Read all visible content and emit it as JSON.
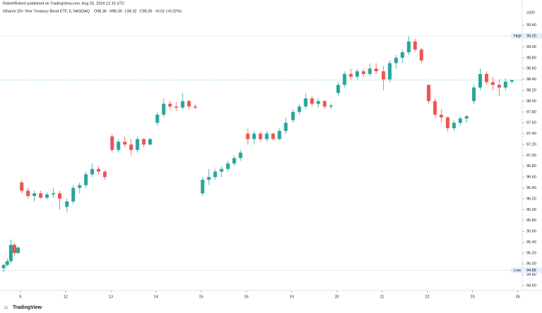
{
  "chart_data": {
    "type": "candlestick",
    "publisher": "RobertRobert published on TradingView.com, Aug 25, 2024 12:15 UTC",
    "title": "iShares 20+ Year Treasury Bond ETF, 5, NASDAQ",
    "legend_values": [
      "O98.36",
      "H98.39",
      "L98.32",
      "C98.39",
      "+0.02 (+0.02%)"
    ],
    "currency": "USD",
    "brand": "TradingView",
    "up_color": "#26a69a",
    "down_color": "#ef5350",
    "high_label": "High",
    "high": {
      "value": 99.2,
      "label": "99.20"
    },
    "low_label": "Low",
    "low": 94.88,
    "xlim": [
      -0.45,
      11.1
    ],
    "xticks": [
      {
        "value": 0,
        "label": "9"
      },
      {
        "value": 1,
        "label": "12"
      },
      {
        "value": 2,
        "label": "13"
      },
      {
        "value": 3,
        "label": "14"
      },
      {
        "value": 4,
        "label": "15"
      },
      {
        "value": 5,
        "label": "16"
      },
      {
        "value": 6,
        "label": "19"
      },
      {
        "value": 7,
        "label": "20"
      },
      {
        "value": 8,
        "label": "21"
      },
      {
        "value": 9,
        "label": "22"
      },
      {
        "value": 10,
        "label": "23"
      },
      {
        "value": 11,
        "label": "26"
      }
    ],
    "ylim": [
      94.51,
      99.76
    ],
    "yticks": [
      {
        "value": 94.6,
        "label": "94.60"
      },
      {
        "value": 94.8,
        "label": "94.80"
      },
      {
        "value": 95,
        "label": "95.00"
      },
      {
        "value": 95.2,
        "label": "95.20"
      },
      {
        "value": 95.4,
        "label": "95.40"
      },
      {
        "value": 95.6,
        "label": "95.60"
      },
      {
        "value": 95.8,
        "label": "95.80"
      },
      {
        "value": 96,
        "label": "96.00"
      },
      {
        "value": 96.2,
        "label": "96.20"
      },
      {
        "value": 96.4,
        "label": "96.40"
      },
      {
        "value": 96.6,
        "label": "96.60"
      },
      {
        "value": 96.8,
        "label": "96.80"
      },
      {
        "value": 97,
        "label": "97.00"
      },
      {
        "value": 97.2,
        "label": "97.20"
      },
      {
        "value": 97.4,
        "label": "97.40"
      },
      {
        "value": 97.6,
        "label": "97.60"
      },
      {
        "value": 97.8,
        "label": "97.80"
      },
      {
        "value": 98,
        "label": "98.00"
      },
      {
        "value": 98.2,
        "label": "98.20"
      },
      {
        "value": 98.4,
        "label": "98.40"
      },
      {
        "value": 98.6,
        "label": "98.60"
      },
      {
        "value": 98.8,
        "label": "98.80"
      },
      {
        "value": 99,
        "label": "99.00"
      },
      {
        "value": 99.2,
        "label": "99.20"
      },
      {
        "value": 99.4,
        "label": "99.40"
      }
    ],
    "x": [
      -0.37,
      -0.29,
      -0.21,
      -0.13,
      -0.05,
      0.03,
      0.17,
      0.31,
      0.45,
      0.59,
      0.73,
      0.87,
      1.03,
      1.17,
      1.31,
      1.45,
      1.59,
      1.73,
      1.87,
      2.03,
      2.17,
      2.31,
      2.45,
      2.59,
      2.73,
      2.87,
      3.03,
      3.17,
      3.31,
      3.45,
      3.59,
      3.73,
      3.87,
      4.03,
      4.17,
      4.31,
      4.45,
      4.59,
      4.73,
      4.87,
      5.03,
      5.17,
      5.31,
      5.45,
      5.59,
      5.73,
      5.87,
      6.03,
      6.17,
      6.31,
      6.45,
      6.59,
      6.73,
      6.87,
      7.03,
      7.17,
      7.31,
      7.45,
      7.59,
      7.73,
      7.87,
      8.03,
      8.17,
      8.31,
      8.45,
      8.59,
      8.73,
      8.87,
      9.03,
      9.17,
      9.31,
      9.45,
      9.59,
      9.73,
      9.87,
      10.03,
      10.17,
      10.31,
      10.45,
      10.59,
      10.73,
      10.87
    ],
    "ohlc": [
      [
        94.92,
        95.0,
        94.85,
        94.98
      ],
      [
        94.98,
        95.1,
        94.95,
        95.05
      ],
      [
        95.05,
        95.45,
        95.0,
        95.35
      ],
      [
        95.35,
        95.38,
        95.15,
        95.2
      ],
      [
        95.2,
        95.32,
        95.18,
        95.3
      ],
      [
        96.5,
        96.55,
        96.3,
        96.35
      ],
      [
        96.35,
        96.4,
        96.2,
        96.25
      ],
      [
        96.25,
        96.35,
        96.15,
        96.3
      ],
      [
        96.3,
        96.35,
        96.2,
        96.22
      ],
      [
        96.22,
        96.32,
        96.18,
        96.28
      ],
      [
        96.28,
        96.4,
        96.22,
        96.3
      ],
      [
        96.3,
        96.35,
        96.0,
        96.2
      ],
      [
        96.05,
        96.2,
        95.95,
        96.15
      ],
      [
        96.15,
        96.45,
        96.1,
        96.4
      ],
      [
        96.4,
        96.5,
        96.3,
        96.45
      ],
      [
        96.45,
        96.7,
        96.4,
        96.65
      ],
      [
        96.65,
        96.85,
        96.6,
        96.75
      ],
      [
        96.75,
        96.8,
        96.65,
        96.7
      ],
      [
        96.7,
        96.72,
        96.55,
        96.6
      ],
      [
        97.35,
        97.4,
        97.05,
        97.1
      ],
      [
        97.1,
        97.3,
        97.05,
        97.25
      ],
      [
        97.25,
        97.35,
        97.15,
        97.2
      ],
      [
        97.2,
        97.3,
        97.0,
        97.1
      ],
      [
        97.1,
        97.35,
        97.05,
        97.3
      ],
      [
        97.3,
        97.32,
        97.15,
        97.2
      ],
      [
        97.2,
        97.32,
        97.18,
        97.3
      ],
      [
        97.6,
        97.8,
        97.55,
        97.75
      ],
      [
        97.75,
        98.05,
        97.7,
        97.95
      ],
      [
        97.95,
        98.0,
        97.85,
        97.9
      ],
      [
        97.9,
        97.98,
        97.82,
        97.88
      ],
      [
        97.88,
        98.15,
        97.85,
        98.0
      ],
      [
        98.0,
        98.02,
        97.85,
        97.9
      ],
      [
        97.9,
        97.95,
        97.85,
        97.88
      ],
      [
        96.3,
        96.6,
        96.25,
        96.55
      ],
      [
        96.55,
        96.75,
        96.45,
        96.6
      ],
      [
        96.6,
        96.75,
        96.55,
        96.7
      ],
      [
        96.7,
        96.8,
        96.6,
        96.75
      ],
      [
        96.75,
        96.9,
        96.7,
        96.85
      ],
      [
        96.85,
        97.0,
        96.8,
        96.95
      ],
      [
        96.95,
        97.1,
        96.9,
        97.05
      ],
      [
        97.4,
        97.5,
        97.2,
        97.3
      ],
      [
        97.3,
        97.45,
        97.2,
        97.4
      ],
      [
        97.4,
        97.45,
        97.25,
        97.3
      ],
      [
        97.3,
        97.45,
        97.25,
        97.4
      ],
      [
        97.4,
        97.42,
        97.28,
        97.3
      ],
      [
        97.3,
        97.5,
        97.28,
        97.45
      ],
      [
        97.45,
        97.7,
        97.4,
        97.6
      ],
      [
        97.65,
        97.85,
        97.6,
        97.8
      ],
      [
        97.8,
        97.95,
        97.75,
        97.9
      ],
      [
        97.9,
        98.15,
        97.85,
        98.05
      ],
      [
        98.05,
        98.1,
        97.9,
        97.95
      ],
      [
        97.95,
        98.05,
        97.88,
        98.0
      ],
      [
        98.0,
        98.02,
        97.85,
        97.9
      ],
      [
        97.9,
        97.95,
        97.85,
        97.92
      ],
      [
        98.15,
        98.35,
        98.1,
        98.3
      ],
      [
        98.3,
        98.55,
        98.25,
        98.5
      ],
      [
        98.5,
        98.6,
        98.4,
        98.45
      ],
      [
        98.45,
        98.6,
        98.4,
        98.55
      ],
      [
        98.55,
        98.6,
        98.45,
        98.5
      ],
      [
        98.5,
        98.7,
        98.45,
        98.6
      ],
      [
        98.6,
        98.7,
        98.5,
        98.55
      ],
      [
        98.55,
        98.65,
        98.2,
        98.4
      ],
      [
        98.4,
        98.75,
        98.35,
        98.7
      ],
      [
        98.7,
        98.85,
        98.6,
        98.8
      ],
      [
        98.8,
        98.95,
        98.7,
        98.9
      ],
      [
        98.9,
        99.2,
        98.85,
        99.1
      ],
      [
        99.1,
        99.15,
        98.9,
        98.95
      ],
      [
        98.95,
        98.98,
        98.7,
        98.75
      ],
      [
        98.3,
        98.3,
        97.95,
        98.0
      ],
      [
        98.0,
        98.05,
        97.7,
        97.75
      ],
      [
        97.75,
        97.85,
        97.6,
        97.7
      ],
      [
        97.7,
        97.72,
        97.43,
        97.5
      ],
      [
        97.5,
        97.65,
        97.45,
        97.6
      ],
      [
        97.6,
        97.72,
        97.55,
        97.68
      ],
      [
        97.68,
        97.75,
        97.6,
        97.72
      ],
      [
        98.0,
        98.3,
        97.95,
        98.25
      ],
      [
        98.25,
        98.6,
        98.2,
        98.5
      ],
      [
        98.5,
        98.55,
        98.3,
        98.35
      ],
      [
        98.35,
        98.45,
        98.2,
        98.3
      ],
      [
        98.3,
        98.4,
        98.1,
        98.25
      ],
      [
        98.25,
        98.42,
        98.2,
        98.36
      ],
      [
        98.36,
        98.39,
        98.32,
        98.39
      ]
    ]
  }
}
